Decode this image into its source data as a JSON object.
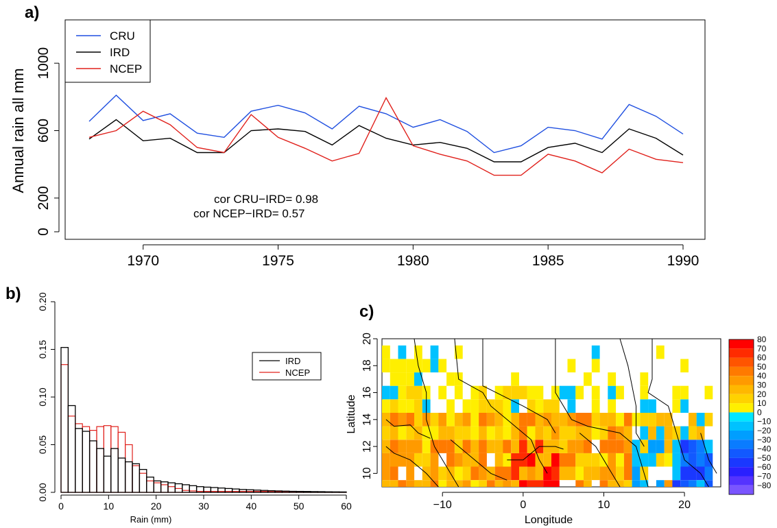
{
  "panels": {
    "a": {
      "label": "a)"
    },
    "b": {
      "label": "b)"
    },
    "c": {
      "label": "c)"
    }
  },
  "colors": {
    "CRU": "#1f4fe0",
    "IRD": "#000000",
    "NCEP": "#e0201b"
  },
  "chart_data": [
    {
      "type": "line",
      "title": "",
      "xlabel": "",
      "ylabel": "Annual rain all  mm",
      "xlim": [
        1968,
        1990
      ],
      "ylim": [
        0,
        1200
      ],
      "xticks": [
        "1970",
        "1975",
        "1980",
        "1985",
        "1990"
      ],
      "yticks": [
        "0",
        "200",
        "600",
        "1000"
      ],
      "legend_placement": "top-left",
      "x": [
        1968,
        1969,
        1970,
        1971,
        1972,
        1973,
        1974,
        1975,
        1976,
        1977,
        1978,
        1979,
        1980,
        1981,
        1982,
        1983,
        1984,
        1985,
        1986,
        1987,
        1988,
        1989,
        1990
      ],
      "series": [
        {
          "name": "CRU",
          "values": [
            655,
            810,
            660,
            700,
            585,
            560,
            715,
            750,
            705,
            610,
            745,
            700,
            620,
            665,
            595,
            470,
            510,
            620,
            600,
            550,
            755,
            685,
            580
          ]
        },
        {
          "name": "IRD",
          "values": [
            550,
            665,
            540,
            555,
            470,
            470,
            600,
            610,
            595,
            515,
            630,
            555,
            515,
            530,
            495,
            415,
            415,
            500,
            525,
            470,
            610,
            555,
            455
          ]
        },
        {
          "name": "NCEP",
          "values": [
            560,
            600,
            715,
            635,
            500,
            470,
            695,
            560,
            495,
            420,
            465,
            795,
            510,
            460,
            420,
            335,
            335,
            460,
            420,
            350,
            490,
            430,
            410
          ]
        }
      ],
      "annotations": [
        "cor CRU−IRD= 0.98",
        "cor NCEP−IRD= 0.57"
      ]
    },
    {
      "type": "bar",
      "title": "",
      "xlabel": "Rain (mm)",
      "ylabel": "",
      "xlim": [
        0,
        60
      ],
      "ylim": [
        0,
        0.2
      ],
      "xticks": [
        "0",
        "10",
        "20",
        "30",
        "40",
        "50",
        "60"
      ],
      "yticks": [
        "0.00",
        "0.05",
        "0.10",
        "0.15",
        "0.20"
      ],
      "legend_placement": "top-right",
      "bin_width": 1.5,
      "series": [
        {
          "name": "IRD",
          "values": [
            0.152,
            0.091,
            0.067,
            0.064,
            0.054,
            0.046,
            0.038,
            0.046,
            0.036,
            0.032,
            0.03,
            0.024,
            0.016,
            0.012,
            0.011,
            0.01,
            0.009,
            0.008,
            0.007,
            0.006,
            0.0055,
            0.005,
            0.0045,
            0.004,
            0.0035,
            0.003,
            0.0027,
            0.0024,
            0.002,
            0.0017,
            0.0015,
            0.0013,
            0.0011,
            0.001,
            0.0009,
            0.0008,
            0.0007,
            0.0006,
            0.0005,
            0.0004
          ]
        },
        {
          "name": "NCEP",
          "values": [
            0.134,
            0.08,
            0.072,
            0.069,
            0.065,
            0.069,
            0.07,
            0.069,
            0.063,
            0.05,
            0.028,
            0.02,
            0.012,
            0.01,
            0.008,
            0.006,
            0.004,
            0.002,
            0.0015,
            0.001,
            0.001,
            0.001,
            0.001,
            0.001,
            0.001,
            0.001,
            0.001,
            0.001,
            0.001,
            0.001,
            0.0008,
            0.0006,
            0.0005,
            0.0004,
            0.0003,
            0.0002,
            0.0002,
            0.0001,
            0.0001,
            0.0001
          ]
        }
      ]
    },
    {
      "type": "heatmap",
      "title": "",
      "xlabel": "Longitude",
      "ylabel": "Latitude",
      "xlim": [
        -17.5,
        24.5
      ],
      "ylim": [
        9,
        20
      ],
      "xticks": [
        "-10",
        "0",
        "10",
        "20"
      ],
      "yticks": [
        "10",
        "12",
        "14",
        "16",
        "18",
        "20"
      ],
      "legend_placement": "right",
      "colorbar": {
        "labels": [
          "80",
          "70",
          "60",
          "50",
          "40",
          "30",
          "20",
          "10",
          "0",
          "-10",
          "-20",
          "-30",
          "-40",
          "-50",
          "-60",
          "-70",
          "-80"
        ],
        "colors": [
          "#ff0000",
          "#ff2b00",
          "#ff5500",
          "#ff7a00",
          "#ff9a00",
          "#ffb800",
          "#ffd200",
          "#ffef00",
          "#00e6ff",
          "#00c2ff",
          "#009eff",
          "#0a7cff",
          "#1259ff",
          "#1a38ff",
          "#2a20ff",
          "#5533ff",
          "#7a55ff"
        ]
      }
    }
  ]
}
